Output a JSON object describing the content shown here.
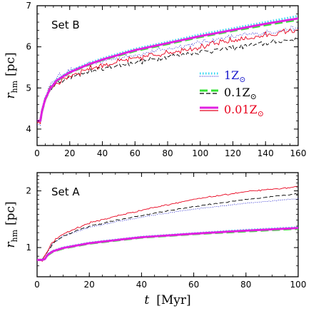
{
  "chart_data": [
    {
      "type": "line",
      "panel_label": "Set B",
      "ylabel": "r_hm [pc]",
      "ylabel_main": "r",
      "ylabel_sub": "hm",
      "ylabel_unit": "[pc]",
      "xlim": [
        0,
        160
      ],
      "ylim": [
        3.6,
        7.0
      ],
      "log_y": false,
      "x_ticks": [
        0,
        20,
        40,
        60,
        80,
        100,
        120,
        140,
        160
      ],
      "y_ticks": [
        4,
        5,
        6,
        7
      ],
      "legend": {
        "position": "center-right",
        "entries": [
          {
            "label": "1Z⊙",
            "main": "1Z",
            "sun": "⊙",
            "color": "#1a1acc",
            "style": "dotted"
          },
          {
            "label": "0.1Z⊙",
            "main": "0.1Z",
            "sun": "⊙",
            "color": "#000000",
            "style": "dashed"
          },
          {
            "label": "0.01Z⊙",
            "main": "0.01Z",
            "sun": "⊙",
            "color": "#e8001c",
            "style": "solid"
          }
        ]
      },
      "series": [
        {
          "name": "1Z⊙",
          "kind": "model",
          "color": "#33d6f0",
          "style": "dotted",
          "x": [
            0,
            2,
            3,
            5,
            8,
            12,
            20,
            30,
            40,
            60,
            80,
            100,
            120,
            140,
            160
          ],
          "y": [
            4.2,
            4.2,
            4.45,
            4.75,
            5.0,
            5.2,
            5.4,
            5.58,
            5.72,
            5.95,
            6.12,
            6.3,
            6.45,
            6.6,
            6.75
          ]
        },
        {
          "name": "0.1Z⊙",
          "kind": "model",
          "color": "#33e033",
          "style": "dashed",
          "x": [
            0,
            2,
            3,
            5,
            8,
            12,
            20,
            30,
            40,
            60,
            80,
            100,
            120,
            140,
            160
          ],
          "y": [
            4.2,
            4.2,
            4.43,
            4.72,
            4.97,
            5.17,
            5.37,
            5.54,
            5.68,
            5.9,
            6.07,
            6.24,
            6.39,
            6.53,
            6.66
          ]
        },
        {
          "name": "0.01Z⊙",
          "kind": "model",
          "color": "#e020e0",
          "style": "solid",
          "x": [
            0,
            2,
            3,
            5,
            8,
            12,
            20,
            30,
            40,
            60,
            80,
            100,
            120,
            140,
            160
          ],
          "y": [
            4.2,
            4.2,
            4.44,
            4.73,
            4.98,
            5.18,
            5.38,
            5.55,
            5.69,
            5.92,
            6.09,
            6.26,
            6.41,
            6.56,
            6.69
          ]
        },
        {
          "name": "1Z⊙",
          "kind": "nbody",
          "color": "#1a1acc",
          "style": "dotted",
          "noise": 0.05,
          "x": [
            0,
            2,
            3,
            5,
            8,
            12,
            20,
            30,
            40,
            60,
            80,
            100,
            120,
            140,
            160
          ],
          "y": [
            4.1,
            4.15,
            4.45,
            4.8,
            5.05,
            5.25,
            5.42,
            5.55,
            5.65,
            5.8,
            5.95,
            6.1,
            6.25,
            6.35,
            6.45
          ]
        },
        {
          "name": "0.1Z⊙",
          "kind": "nbody",
          "color": "#000000",
          "style": "dashed",
          "noise": 0.05,
          "x": [
            0,
            2,
            3,
            5,
            8,
            12,
            20,
            30,
            40,
            60,
            80,
            100,
            120,
            140,
            160
          ],
          "y": [
            4.15,
            4.2,
            4.4,
            4.7,
            4.95,
            5.1,
            5.25,
            5.38,
            5.47,
            5.62,
            5.76,
            5.88,
            5.98,
            6.08,
            6.2
          ]
        },
        {
          "name": "0.01Z⊙",
          "kind": "nbody",
          "color": "#e8001c",
          "style": "solid",
          "noise": 0.06,
          "x": [
            0,
            2,
            3,
            5,
            8,
            12,
            20,
            30,
            40,
            60,
            80,
            100,
            120,
            140,
            160
          ],
          "y": [
            4.15,
            4.2,
            4.42,
            4.72,
            4.97,
            5.12,
            5.3,
            5.45,
            5.55,
            5.72,
            5.86,
            6.0,
            6.15,
            6.28,
            6.42
          ]
        }
      ]
    },
    {
      "type": "line",
      "panel_label": "Set A",
      "ylabel": "r_hm [pc]",
      "ylabel_main": "r",
      "ylabel_sub": "hm",
      "ylabel_unit": "[pc]",
      "xlabel": "t [Myr]",
      "xlabel_main": "t",
      "xlabel_unit": "[Myr]",
      "xlim": [
        0,
        100
      ],
      "ylim": [
        0.7,
        2.5
      ],
      "log_y": true,
      "x_ticks": [
        0,
        20,
        40,
        60,
        80,
        100
      ],
      "y_ticks": [
        1,
        2
      ],
      "series": [
        {
          "name": "1Z⊙",
          "kind": "model",
          "color": "#33d6f0",
          "style": "dotted",
          "x": [
            0,
            2,
            3,
            4,
            6,
            10,
            20,
            40,
            60,
            80,
            100
          ],
          "y": [
            0.86,
            0.86,
            0.87,
            0.92,
            0.96,
            1.0,
            1.06,
            1.14,
            1.19,
            1.24,
            1.28
          ]
        },
        {
          "name": "0.1Z⊙",
          "kind": "model",
          "color": "#33e033",
          "style": "dashed",
          "x": [
            0,
            2,
            3,
            4,
            6,
            10,
            20,
            40,
            60,
            80,
            100
          ],
          "y": [
            0.86,
            0.86,
            0.87,
            0.91,
            0.95,
            0.99,
            1.05,
            1.13,
            1.18,
            1.22,
            1.26
          ]
        },
        {
          "name": "0.01Z⊙",
          "kind": "model",
          "color": "#e020e0",
          "style": "solid",
          "x": [
            0,
            2,
            3,
            4,
            6,
            10,
            20,
            40,
            60,
            80,
            100
          ],
          "y": [
            0.86,
            0.86,
            0.87,
            0.915,
            0.955,
            0.995,
            1.055,
            1.135,
            1.185,
            1.23,
            1.27
          ]
        },
        {
          "name": "1Z⊙",
          "kind": "nbody",
          "color": "#1a1acc",
          "style": "dotted",
          "noise": 0.008,
          "x": [
            0,
            2,
            4,
            6,
            10,
            20,
            40,
            60,
            80,
            100
          ],
          "y": [
            0.85,
            0.86,
            0.95,
            1.05,
            1.15,
            1.28,
            1.45,
            1.6,
            1.72,
            1.82
          ]
        },
        {
          "name": "0.1Z⊙",
          "kind": "nbody",
          "color": "#000000",
          "style": "dashed",
          "noise": 0.01,
          "x": [
            0,
            2,
            4,
            6,
            10,
            20,
            40,
            60,
            80,
            100
          ],
          "y": [
            0.85,
            0.86,
            0.95,
            1.05,
            1.15,
            1.3,
            1.48,
            1.65,
            1.8,
            1.93
          ]
        },
        {
          "name": "0.01Z⊙",
          "kind": "nbody",
          "color": "#e8001c",
          "style": "solid",
          "noise": 0.012,
          "x": [
            0,
            2,
            4,
            6,
            10,
            20,
            40,
            60,
            80,
            100
          ],
          "y": [
            0.85,
            0.86,
            0.96,
            1.07,
            1.18,
            1.35,
            1.58,
            1.8,
            1.98,
            2.1
          ]
        }
      ]
    }
  ]
}
